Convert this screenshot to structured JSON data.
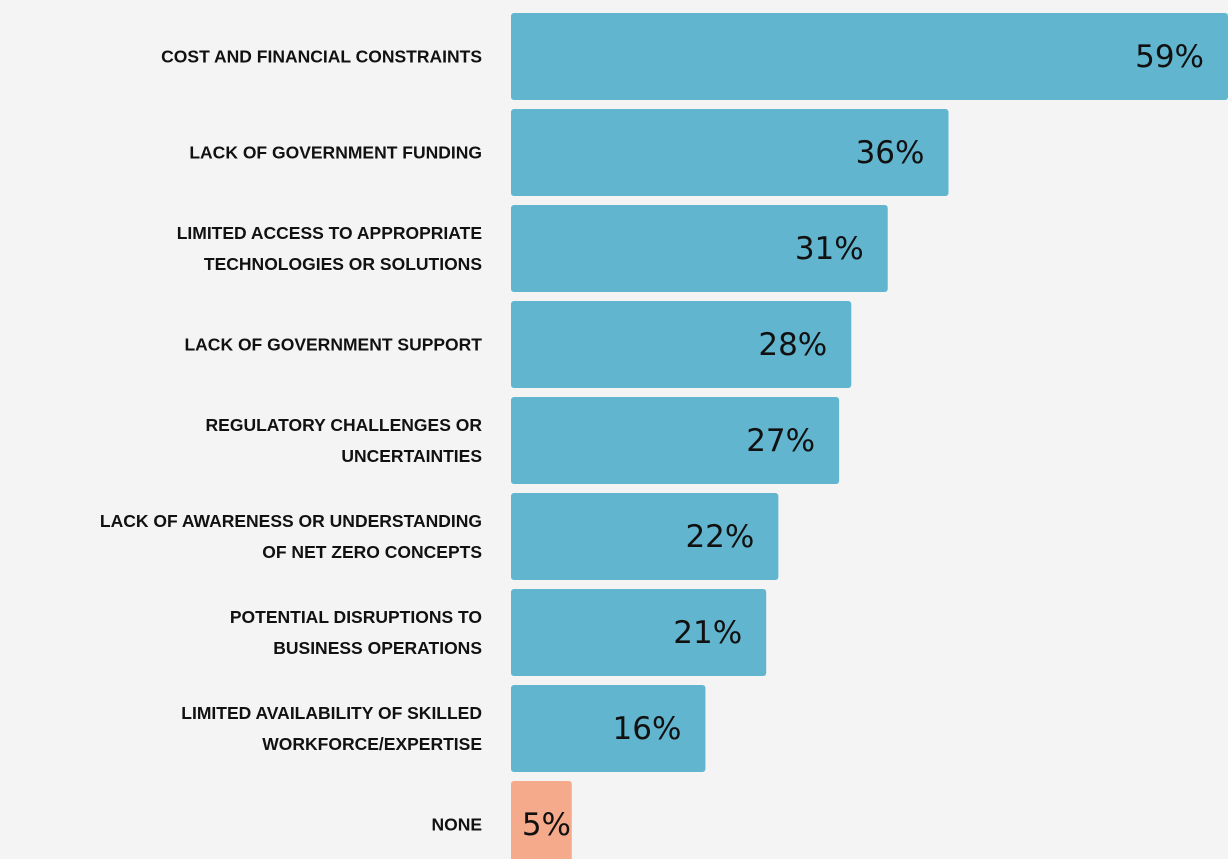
{
  "chart_data": {
    "type": "hbar",
    "categories": [
      "COST AND FINANCIAL CONSTRAINTS",
      "LACK OF GOVERNMENT FUNDING",
      "LIMITED ACCESS TO APPROPRIATE\nTECHNOLOGIES OR SOLUTIONS",
      "LACK OF GOVERNMENT SUPPORT",
      "REGULATORY CHALLENGES OR\nUNCERTAINTIES",
      "LACK OF AWARENESS OR UNDERSTANDING\nOF NET ZERO CONCEPTS",
      "POTENTIAL DISRUPTIONS TO\nBUSINESS OPERATIONS",
      "LIMITED AVAILABILITY OF SKILLED\nWORKFORCE/EXPERTISE",
      "NONE"
    ],
    "values": [
      59,
      36,
      31,
      28,
      27,
      22,
      21,
      16,
      5
    ],
    "value_labels": [
      "59%",
      "36%",
      "31%",
      "28%",
      "27%",
      "22%",
      "21%",
      "16%",
      "5%"
    ],
    "colors": [
      "#62b5cf",
      "#62b5cf",
      "#62b5cf",
      "#62b5cf",
      "#62b5cf",
      "#62b5cf",
      "#62b5cf",
      "#62b5cf",
      "#f5aa8b"
    ]
  }
}
